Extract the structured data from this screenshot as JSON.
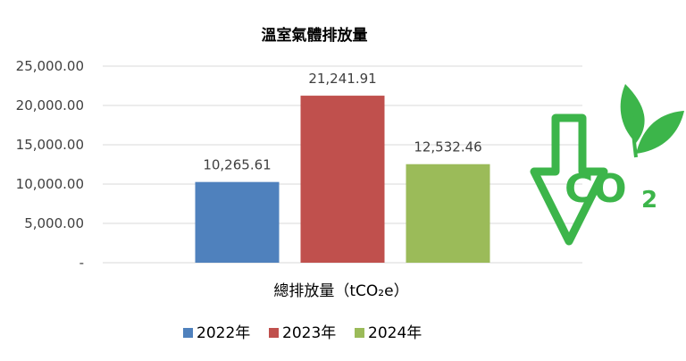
{
  "chart_data": {
    "type": "bar",
    "title": "溫室氣體排放量",
    "xlabel": "總排放量（tCO₂e）",
    "ylabel": "",
    "categories": [
      "總排放量（tCO₂e）"
    ],
    "series": [
      {
        "name": "2022年",
        "values": [
          10265.61
        ],
        "label": "10,265.61",
        "color": "#4F81BD"
      },
      {
        "name": "2023年",
        "values": [
          21241.91
        ],
        "label": "21,241.91",
        "color": "#C0504D"
      },
      {
        "name": "2024年",
        "values": [
          12532.46
        ],
        "label": "12,532.46",
        "color": "#9BBB59"
      }
    ],
    "ylim": [
      0,
      25000
    ],
    "yticks": [
      0,
      5000,
      10000,
      15000,
      20000,
      25000
    ],
    "ytick_labels": [
      "-",
      "5,000.00",
      "10,000.00",
      "15,000.00",
      "20,000.00",
      "25,000.00"
    ],
    "grid": true,
    "legend": "bottom"
  },
  "decoration": {
    "co2_icon_text": "CO",
    "co2_icon_sub": "2",
    "icon_color": "#3CB54A"
  }
}
